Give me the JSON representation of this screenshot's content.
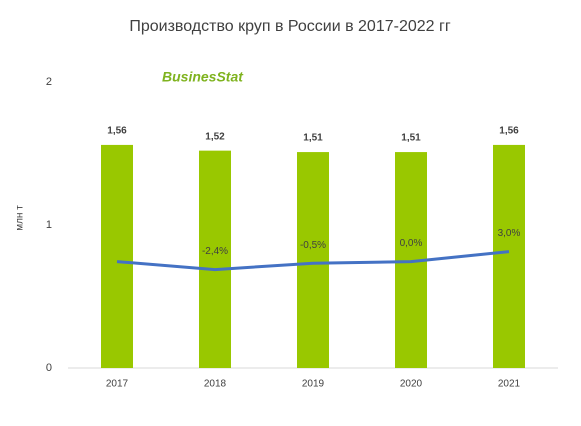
{
  "chart_data": {
    "type": "bar",
    "title": "Производство круп в России в 2017-2022 гг",
    "y_label": "млн т",
    "logo": "BusinesStat",
    "categories": [
      "2017",
      "2018",
      "2019",
      "2020",
      "2021"
    ],
    "ylim": [
      0,
      2
    ],
    "yticks": [
      0,
      1,
      2
    ],
    "y2lim": [
      -32,
      54
    ],
    "series": [
      {
        "type": "bar",
        "color": "#99c800",
        "values": [
          1.56,
          1.52,
          1.51,
          1.51,
          1.56
        ],
        "value_labels": [
          "1,56",
          "1,52",
          "1,51",
          "1,51",
          "1,56"
        ]
      },
      {
        "type": "line",
        "axis": "y2",
        "color": "#4472c4",
        "values": [
          0,
          -2.4,
          -0.5,
          0.0,
          3.0
        ],
        "value_labels": [
          null,
          "-2,4%",
          "-0,5%",
          "0,0%",
          "3,0%"
        ]
      }
    ]
  }
}
